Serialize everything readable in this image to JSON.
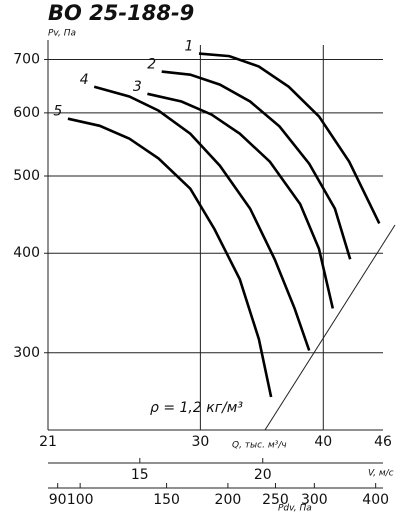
{
  "chart_data": {
    "type": "line",
    "title": "ВО 25-188-9",
    "y_label": "Pv, Па",
    "x_label": "Q, тыс. м³/ч",
    "log_scale": true,
    "grid": true,
    "color": "#000000",
    "annotation": "ρ = 1,2 кг/м³",
    "xlim": [
      21,
      46
    ],
    "xticks": [
      21,
      30,
      40,
      46
    ],
    "ylim": [
      240,
      730
    ],
    "yticks": [
      300,
      400,
      500,
      600,
      700
    ],
    "secondary_x_axes": [
      {
        "label": "V, м/с",
        "lim": [
          12.1,
          26.5
        ],
        "ticks": [
          15,
          20
        ]
      },
      {
        "label": "Pdv, Па",
        "lim": [
          86,
          414
        ],
        "ticks": [
          90,
          100,
          150,
          200,
          250,
          300,
          400
        ]
      }
    ],
    "series": [
      {
        "name": "1",
        "x": [
          29.9,
          32.1,
          34.4,
          36.9,
          39.6,
          42.5,
          45.6
        ],
        "values": [
          712,
          707,
          686,
          647,
          594,
          521,
          436
        ]
      },
      {
        "name": "2",
        "x": [
          27.4,
          29.3,
          31.4,
          33.7,
          36.1,
          38.7,
          41.1,
          42.6
        ],
        "values": [
          676,
          670,
          651,
          620,
          577,
          518,
          455,
          393
        ]
      },
      {
        "name": "3",
        "x": [
          26.5,
          28.7,
          30.8,
          32.9,
          35.3,
          37.9,
          39.6,
          40.9
        ],
        "values": [
          634,
          620,
          597,
          565,
          521,
          461,
          405,
          341
        ]
      },
      {
        "name": "4",
        "x": [
          23.4,
          25.4,
          27.2,
          29.3,
          31.4,
          33.7,
          35.7,
          37.4,
          38.7
        ],
        "values": [
          647,
          629,
          604,
          565,
          515,
          455,
          393,
          341,
          302
        ]
      },
      {
        "name": "5",
        "x": [
          22.0,
          23.7,
          25.4,
          27.2,
          29.3,
          31.0,
          32.9,
          34.4,
          35.4
        ],
        "values": [
          590,
          578,
          557,
          526,
          482,
          429,
          371,
          312,
          264
        ]
      }
    ]
  }
}
